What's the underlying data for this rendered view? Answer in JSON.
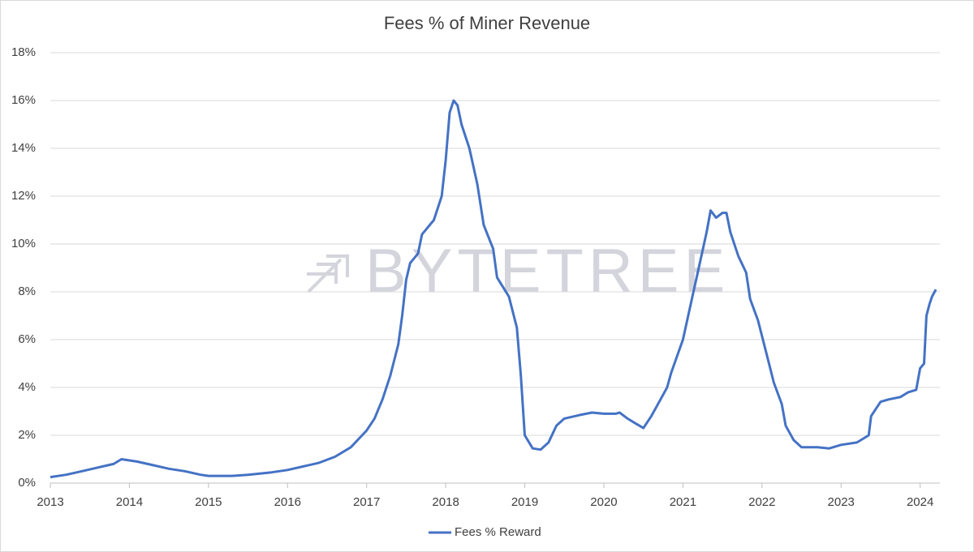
{
  "chart_data": {
    "type": "line",
    "title": "Fees % of Miner Revenue",
    "watermark": "BYTETREE",
    "x": [
      2013.0,
      2013.2,
      2013.4,
      2013.6,
      2013.8,
      2013.9,
      2014.1,
      2014.3,
      2014.5,
      2014.7,
      2014.9,
      2015.0,
      2015.3,
      2015.5,
      2015.8,
      2016.0,
      2016.2,
      2016.4,
      2016.6,
      2016.8,
      2017.0,
      2017.1,
      2017.2,
      2017.3,
      2017.4,
      2017.45,
      2017.5,
      2017.55,
      2017.65,
      2017.7,
      2017.85,
      2017.95,
      2018.0,
      2018.05,
      2018.1,
      2018.15,
      2018.2,
      2018.3,
      2018.4,
      2018.48,
      2018.6,
      2018.65,
      2018.8,
      2018.9,
      2018.95,
      2019.0,
      2019.1,
      2019.2,
      2019.3,
      2019.4,
      2019.5,
      2019.7,
      2019.85,
      2020.0,
      2020.15,
      2020.2,
      2020.3,
      2020.4,
      2020.5,
      2020.6,
      2020.7,
      2020.8,
      2020.85,
      2021.0,
      2021.1,
      2021.2,
      2021.3,
      2021.35,
      2021.42,
      2021.5,
      2021.55,
      2021.6,
      2021.7,
      2021.8,
      2021.85,
      2021.95,
      2022.05,
      2022.15,
      2022.25,
      2022.3,
      2022.4,
      2022.5,
      2022.7,
      2022.85,
      2023.0,
      2023.2,
      2023.3,
      2023.35,
      2023.38,
      2023.5,
      2023.6,
      2023.75,
      2023.85,
      2023.95,
      2024.0,
      2024.05,
      2024.08,
      2024.12,
      2024.15,
      2024.2
    ],
    "series": [
      {
        "name": "Fees % Reward",
        "color": "#4472c4",
        "values": [
          0.25,
          0.35,
          0.5,
          0.65,
          0.8,
          1.0,
          0.9,
          0.75,
          0.6,
          0.5,
          0.35,
          0.3,
          0.3,
          0.35,
          0.45,
          0.55,
          0.7,
          0.85,
          1.1,
          1.5,
          2.2,
          2.7,
          3.5,
          4.5,
          5.8,
          7.0,
          8.5,
          9.2,
          9.6,
          10.4,
          11.0,
          12.0,
          13.5,
          15.5,
          16.0,
          15.8,
          15.0,
          14.0,
          12.5,
          10.8,
          9.8,
          8.6,
          7.8,
          6.5,
          4.5,
          2.0,
          1.45,
          1.4,
          1.7,
          2.4,
          2.7,
          2.85,
          2.95,
          2.9,
          2.9,
          2.95,
          2.7,
          2.5,
          2.3,
          2.8,
          3.4,
          4.0,
          4.6,
          6.0,
          7.5,
          9.0,
          10.5,
          11.4,
          11.1,
          11.3,
          11.3,
          10.5,
          9.5,
          8.8,
          7.7,
          6.8,
          5.5,
          4.2,
          3.3,
          2.4,
          1.8,
          1.5,
          1.5,
          1.45,
          1.6,
          1.7,
          1.9,
          2.0,
          2.8,
          3.4,
          3.5,
          3.6,
          3.8,
          3.9,
          4.8,
          5.0,
          7.0,
          7.5,
          7.8,
          8.1
        ]
      }
    ],
    "xlim": [
      2013,
      2024.25
    ],
    "xticks": [
      2013,
      2014,
      2015,
      2016,
      2017,
      2018,
      2019,
      2020,
      2021,
      2022,
      2023,
      2024
    ],
    "ylim": [
      0,
      18
    ],
    "yticks": [
      {
        "value": 0,
        "label": "0%"
      },
      {
        "value": 2,
        "label": "2%"
      },
      {
        "value": 4,
        "label": "4%"
      },
      {
        "value": 6,
        "label": "6%"
      },
      {
        "value": 8,
        "label": "8%"
      },
      {
        "value": 10,
        "label": "10%"
      },
      {
        "value": 12,
        "label": "12%"
      },
      {
        "value": 14,
        "label": "14%"
      },
      {
        "value": 16,
        "label": "16%"
      },
      {
        "value": 18,
        "label": "18%"
      }
    ],
    "grid": true,
    "legend": "bottom"
  }
}
